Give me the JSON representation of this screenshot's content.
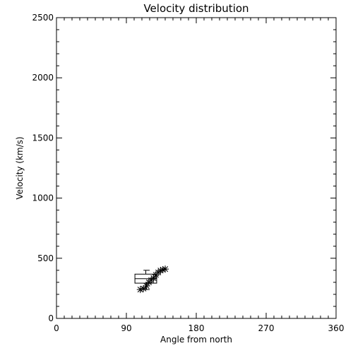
{
  "chart_data": {
    "type": "scatter",
    "title": "Velocity distribution",
    "xlabel": "Angle from north",
    "ylabel": "Velocity (km/s)",
    "xlim": [
      0,
      360
    ],
    "ylim": [
      0,
      2500
    ],
    "xticks": [
      0,
      90,
      180,
      270,
      360
    ],
    "yticks": [
      0,
      500,
      1000,
      1500,
      2000,
      2500
    ],
    "xtick_labels": [
      "0",
      "90",
      "180",
      "270",
      "360"
    ],
    "ytick_labels": [
      "0",
      "500",
      "1000",
      "1500",
      "2000",
      "2500"
    ],
    "x_minor_step": 10,
    "y_minor_step": 100,
    "grid": false,
    "legend": "none",
    "series": [
      {
        "marker": "asterisk",
        "points": [
          {
            "x": 108,
            "y": 240
          },
          {
            "x": 112,
            "y": 248
          },
          {
            "x": 116,
            "y": 270
          },
          {
            "x": 119,
            "y": 300
          },
          {
            "x": 122,
            "y": 318
          },
          {
            "x": 125,
            "y": 335
          },
          {
            "x": 128,
            "y": 362
          },
          {
            "x": 131,
            "y": 382
          },
          {
            "x": 134,
            "y": 398
          },
          {
            "x": 137,
            "y": 405
          },
          {
            "x": 140,
            "y": 410
          }
        ]
      }
    ],
    "boxplot": {
      "x_range": [
        101,
        129
      ],
      "q1": 293,
      "median": 330,
      "q3": 368,
      "whisker_low": 240,
      "whisker_high": 400,
      "whisker_x_range": [
        112,
        120
      ]
    }
  }
}
